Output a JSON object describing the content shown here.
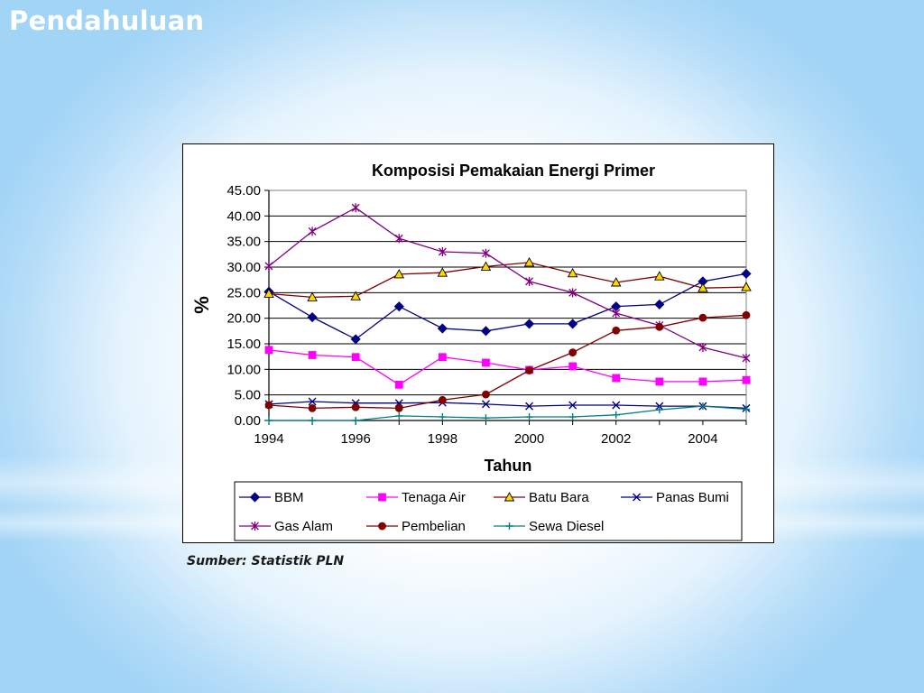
{
  "slide": {
    "title": "Pendahuluan",
    "source": "Sumber: Statistik PLN"
  },
  "chart_data": {
    "type": "line",
    "title": "Komposisi Pemakaian Energi Primer",
    "xlabel": "Tahun",
    "ylabel": "%",
    "x": [
      1994,
      1995,
      1996,
      1997,
      1998,
      1999,
      2000,
      2001,
      2002,
      2003,
      2004,
      2005
    ],
    "xlim": [
      1994,
      2005
    ],
    "ylim": [
      0,
      45
    ],
    "x_ticks": [
      "1994",
      "1996",
      "1998",
      "2000",
      "2002",
      "2004"
    ],
    "y_ticks": [
      "0.00",
      "5.00",
      "10.00",
      "15.00",
      "20.00",
      "25.00",
      "30.00",
      "35.00",
      "40.00",
      "45.00"
    ],
    "grid": "horizontal",
    "legend_position": "bottom",
    "series": [
      {
        "name": "BBM",
        "color": "#000080",
        "marker": "diamond",
        "marker_color": "#000080",
        "values": [
          25.2,
          20.2,
          15.9,
          22.3,
          18.0,
          17.5,
          18.9,
          18.9,
          22.3,
          22.7,
          27.2,
          28.7
        ]
      },
      {
        "name": "Tenaga Air",
        "color": "#ff00ff",
        "marker": "square",
        "marker_color": "#ff00ff",
        "values": [
          13.8,
          12.8,
          12.4,
          7.0,
          12.4,
          11.3,
          9.9,
          10.6,
          8.3,
          7.6,
          7.6,
          7.9
        ]
      },
      {
        "name": "Batu Bara",
        "color": "#800000",
        "marker": "triangle",
        "marker_color": "#ffd700",
        "values": [
          24.8,
          24.1,
          24.3,
          28.6,
          28.9,
          30.1,
          30.9,
          28.8,
          27.0,
          28.2,
          25.9,
          26.1
        ]
      },
      {
        "name": "Panas Bumi",
        "color": "#000080",
        "marker": "x",
        "marker_color": "#000080",
        "values": [
          3.2,
          3.7,
          3.4,
          3.4,
          3.5,
          3.2,
          2.8,
          3.0,
          3.0,
          2.8,
          2.8,
          2.4
        ]
      },
      {
        "name": "Gas Alam",
        "color": "#800080",
        "marker": "star",
        "marker_color": "#800080",
        "values": [
          30.2,
          37.0,
          41.6,
          35.6,
          33.0,
          32.7,
          27.2,
          25.0,
          21.0,
          18.6,
          14.3,
          12.2
        ]
      },
      {
        "name": "Pembelian",
        "color": "#800000",
        "marker": "circle",
        "marker_color": "#800000",
        "values": [
          3.0,
          2.4,
          2.6,
          2.4,
          4.0,
          5.1,
          9.8,
          13.3,
          17.6,
          18.3,
          20.1,
          20.6
        ]
      },
      {
        "name": "Sewa Diesel",
        "color": "#008080",
        "marker": "plus",
        "marker_color": "#008080",
        "values": [
          0.0,
          0.0,
          0.0,
          0.9,
          0.7,
          0.5,
          0.7,
          0.7,
          1.1,
          2.1,
          2.8,
          2.2
        ]
      }
    ]
  }
}
